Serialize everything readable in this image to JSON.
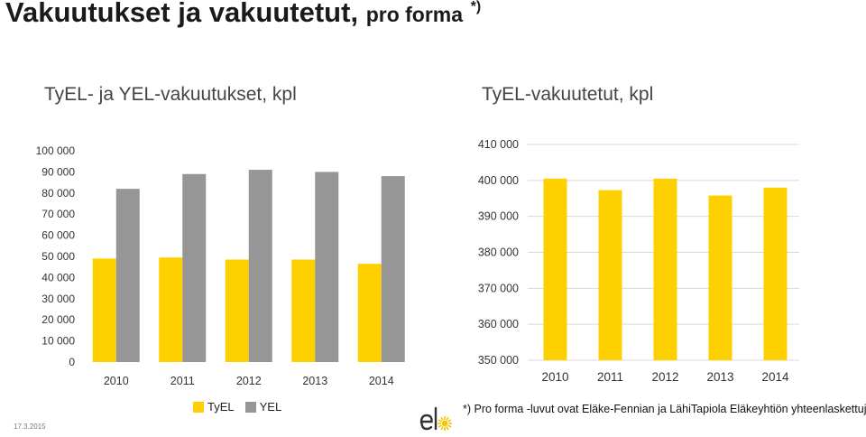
{
  "page": {
    "title": "Vakuutukset ja vakuutetut,",
    "title_suffix": "pro forma",
    "title_mark": "*)",
    "footnote": "*) Pro forma -luvut ovat Eläke-Fennian ja LähiTapiola Eläkeyhtiön yhteenlaskettuja lukuja.",
    "date": "17.3.2015",
    "logo_text": "elo"
  },
  "colors": {
    "tyel": "#ffd000",
    "yel": "#969696",
    "grid": "#d9d9d9",
    "logo_dark": "#333333",
    "logo_sun": "#f5c400"
  },
  "chart_data": [
    {
      "type": "bar",
      "title": "TyEL- ja YEL-vakuutukset, kpl",
      "categories": [
        "2010",
        "2011",
        "2012",
        "2013",
        "2014"
      ],
      "series": [
        {
          "name": "TyEL",
          "values": [
            49000,
            49500,
            48500,
            48500,
            46500
          ]
        },
        {
          "name": "YEL",
          "values": [
            82000,
            89000,
            91000,
            90000,
            88000
          ]
        }
      ],
      "ylim": [
        0,
        100000
      ],
      "yticks": [
        0,
        10000,
        20000,
        30000,
        40000,
        50000,
        60000,
        70000,
        80000,
        90000,
        100000
      ],
      "ytick_labels": [
        "0",
        "10 000",
        "20 000",
        "30 000",
        "40 000",
        "50 000",
        "60 000",
        "70 000",
        "80 000",
        "90 000",
        "100 000"
      ],
      "grid": false,
      "legend": "bottom"
    },
    {
      "type": "bar",
      "title": "TyEL-vakuutetut, kpl",
      "categories": [
        "2010",
        "2011",
        "2012",
        "2013",
        "2014"
      ],
      "series": [
        {
          "values": [
            400500,
            397300,
            400500,
            395800,
            398000
          ]
        }
      ],
      "ylim": [
        350000,
        410000
      ],
      "yticks": [
        350000,
        360000,
        370000,
        380000,
        390000,
        400000,
        410000
      ],
      "ytick_labels": [
        "350 000",
        "360 000",
        "370 000",
        "380 000",
        "390 000",
        "400 000",
        "410 000"
      ],
      "grid": true
    }
  ]
}
